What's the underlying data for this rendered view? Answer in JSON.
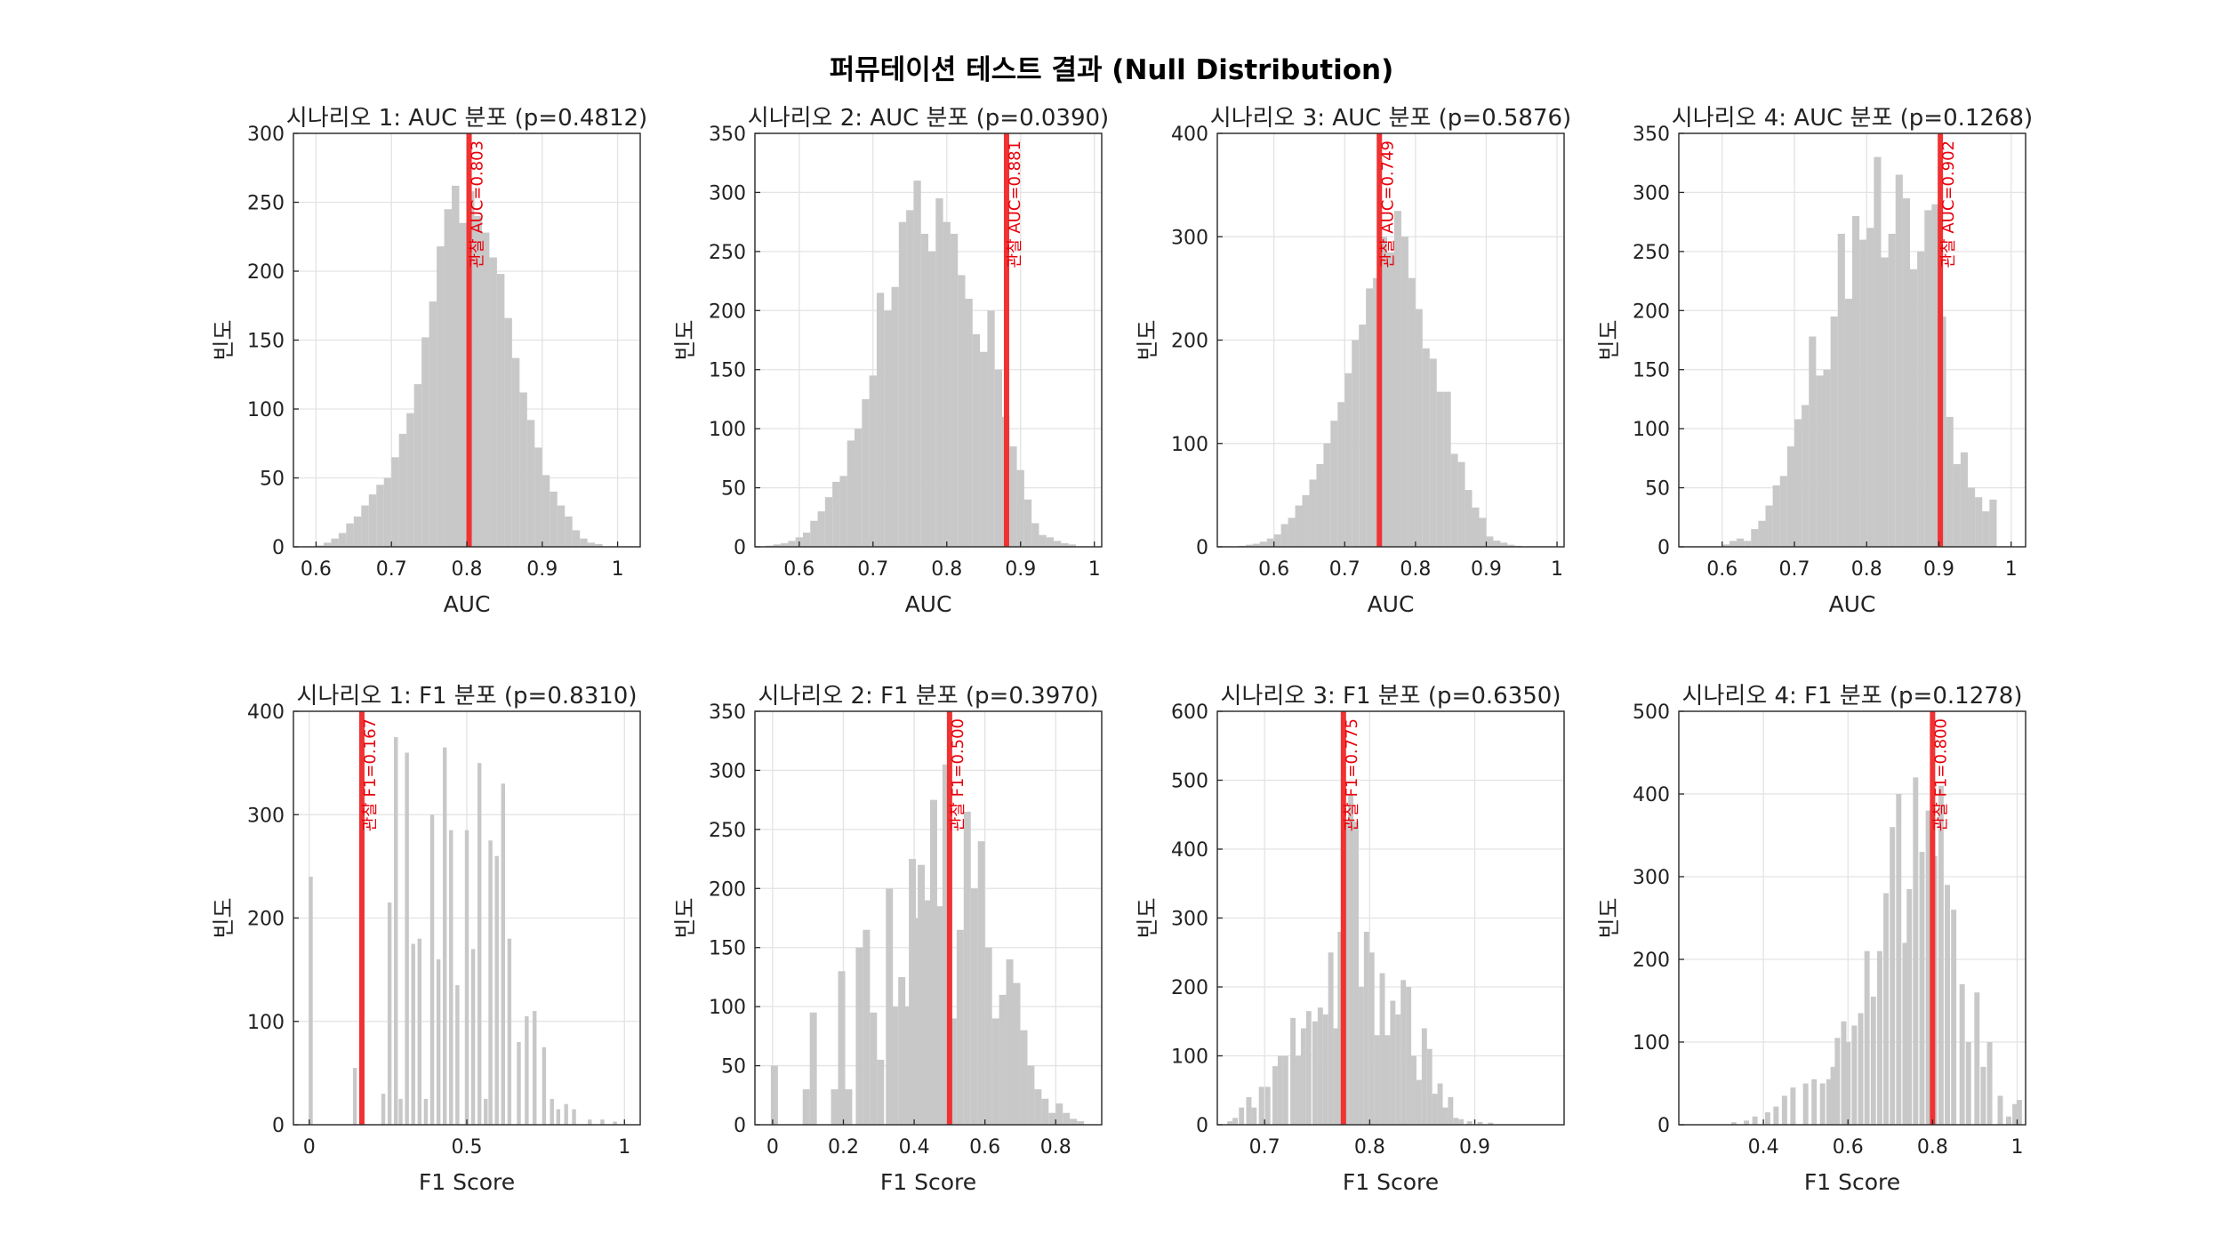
{
  "figure": {
    "title": "퍼뮤테이션 테스트 결과 (Null Distribution)"
  },
  "chart_data": [
    {
      "type": "bar",
      "title": "시나리오 1: AUC 분포 (p=0.4812)",
      "xlabel": "AUC",
      "ylabel": "빈도",
      "xlim": [
        0.57,
        1.03
      ],
      "ylim": [
        0,
        300
      ],
      "xticks": [
        0.6,
        0.7,
        0.8,
        0.9,
        1
      ],
      "xticklabels": [
        "0.6",
        "0.7",
        "0.8",
        "0.9",
        "1"
      ],
      "yticks": [
        0,
        50,
        100,
        150,
        200,
        250,
        300
      ],
      "yticklabels": [
        "0",
        "50",
        "100",
        "150",
        "200",
        "250",
        "300"
      ],
      "observed": {
        "value": 0.803,
        "label": "관찰 AUC=0.803"
      },
      "bin_start": 0.6,
      "bin_width": 0.01,
      "values": [
        1,
        3,
        6,
        10,
        17,
        22,
        30,
        38,
        45,
        50,
        65,
        82,
        97,
        118,
        152,
        178,
        218,
        245,
        262,
        235,
        258,
        240,
        228,
        210,
        198,
        166,
        137,
        112,
        92,
        72,
        52,
        40,
        30,
        22,
        12,
        6,
        3,
        2
      ]
    },
    {
      "type": "bar",
      "title": "시나리오 2: AUC 분포 (p=0.0390)",
      "xlabel": "AUC",
      "ylabel": "빈도",
      "xlim": [
        0.54,
        1.01
      ],
      "ylim": [
        0,
        350
      ],
      "xticks": [
        0.6,
        0.7,
        0.8,
        0.9,
        1
      ],
      "xticklabels": [
        "0.6",
        "0.7",
        "0.8",
        "0.9",
        "1"
      ],
      "yticks": [
        0,
        50,
        100,
        150,
        200,
        250,
        300,
        350
      ],
      "yticklabels": [
        "0",
        "50",
        "100",
        "150",
        "200",
        "250",
        "300",
        "350"
      ],
      "observed": {
        "value": 0.881,
        "label": "관찰 AUC=0.881"
      },
      "bin_start": 0.555,
      "bin_width": 0.01,
      "values": [
        1,
        2,
        3,
        5,
        8,
        12,
        22,
        30,
        42,
        55,
        60,
        90,
        100,
        125,
        145,
        215,
        200,
        220,
        275,
        285,
        310,
        265,
        250,
        295,
        275,
        265,
        230,
        210,
        180,
        165,
        200,
        150,
        110,
        85,
        65,
        40,
        20,
        10,
        8,
        5,
        3,
        2
      ]
    },
    {
      "type": "bar",
      "title": "시나리오 3: AUC 분포 (p=0.5876)",
      "xlabel": "AUC",
      "ylabel": "빈도",
      "xlim": [
        0.52,
        1.01
      ],
      "ylim": [
        0,
        400
      ],
      "xticks": [
        0.6,
        0.7,
        0.8,
        0.9,
        1
      ],
      "xticklabels": [
        "0.6",
        "0.7",
        "0.8",
        "0.9",
        "1"
      ],
      "yticks": [
        0,
        100,
        200,
        300,
        400
      ],
      "yticklabels": [
        "0",
        "100",
        "200",
        "300",
        "400"
      ],
      "observed": {
        "value": 0.749,
        "label": "관찰 AUC=0.749"
      },
      "bin_start": 0.55,
      "bin_width": 0.01,
      "values": [
        1,
        2,
        3,
        5,
        8,
        12,
        22,
        28,
        40,
        50,
        65,
        80,
        100,
        122,
        140,
        168,
        200,
        215,
        250,
        260,
        300,
        285,
        325,
        300,
        260,
        230,
        192,
        182,
        150,
        150,
        90,
        82,
        55,
        38,
        28,
        10,
        6,
        4,
        2,
        1
      ]
    },
    {
      "type": "bar",
      "title": "시나리오 4: AUC 분포 (p=0.1268)",
      "xlabel": "AUC",
      "ylabel": "빈도",
      "xlim": [
        0.54,
        1.02
      ],
      "ylim": [
        0,
        350
      ],
      "xticks": [
        0.6,
        0.7,
        0.8,
        0.9,
        1
      ],
      "xticklabels": [
        "0.6",
        "0.7",
        "0.8",
        "0.9",
        "1"
      ],
      "yticks": [
        0,
        50,
        100,
        150,
        200,
        250,
        300,
        350
      ],
      "yticklabels": [
        "0",
        "50",
        "100",
        "150",
        "200",
        "250",
        "300",
        "350"
      ],
      "observed": {
        "value": 0.902,
        "label": "관찰 AUC=0.902"
      },
      "bin_start": 0.6,
      "bin_width": 0.01,
      "values": [
        2,
        5,
        7,
        5,
        15,
        22,
        35,
        52,
        60,
        85,
        108,
        120,
        178,
        145,
        150,
        195,
        265,
        210,
        280,
        260,
        270,
        330,
        245,
        265,
        315,
        295,
        235,
        250,
        285,
        290,
        195,
        110,
        70,
        80,
        50,
        42,
        30,
        40
      ]
    },
    {
      "type": "bar",
      "title": "시나리오 1: F1 분포 (p=0.8310)",
      "xlabel": "F1 Score",
      "ylabel": "빈도",
      "xlim": [
        -0.05,
        1.05
      ],
      "ylim": [
        0,
        400
      ],
      "xticks": [
        0,
        0.5,
        1
      ],
      "xticklabels": [
        "0",
        "0.5",
        "1"
      ],
      "yticks": [
        0,
        100,
        200,
        300,
        400
      ],
      "yticklabels": [
        "0",
        "100",
        "200",
        "300",
        "400"
      ],
      "observed": {
        "value": 0.167,
        "label": "관찰 F1=0.167"
      },
      "bin_start": 0,
      "bin_width": 0.0125,
      "values": [
        240,
        0,
        0,
        0,
        0,
        0,
        0,
        0,
        0,
        0,
        0,
        0,
        0,
        0,
        0,
        0,
        0,
        0,
        0,
        0,
        0,
        0,
        0,
        0,
        0,
        0,
        55,
        0,
        0,
        0,
        0,
        0,
        0,
        170,
        0,
        0,
        0,
        0,
        0,
        0,
        0,
        0,
        0,
        0,
        0,
        0,
        0,
        0,
        0,
        0,
        0,
        355,
        0,
        0,
        0,
        0,
        0,
        0,
        0,
        0,
        0,
        0,
        0,
        0,
        0,
        0,
        0,
        0,
        0,
        0,
        0,
        0,
        0,
        0,
        0,
        0,
        0,
        0,
        0,
        0,
        0,
        0,
        0,
        0,
        0,
        0,
        0,
        0,
        0,
        0,
        0,
        0,
        0,
        0,
        0,
        0,
        0,
        0,
        0,
        0,
        0,
        0,
        0,
        0,
        0,
        0,
        0,
        0,
        0,
        0,
        0,
        0,
        0,
        0,
        0,
        0,
        0,
        0,
        0,
        0,
        0,
        0,
        0,
        0,
        0,
        0,
        0,
        0,
        0,
        0,
        0,
        0,
        0,
        0,
        0,
        0,
        0,
        0,
        0,
        0,
        0,
        0,
        0,
        0,
        0,
        0,
        0,
        0,
        0,
        0,
        0,
        0,
        0,
        0,
        0,
        0,
        0,
        0,
        0,
        0,
        0,
        0,
        0,
        0,
        0,
        0,
        0,
        0,
        0,
        0,
        0,
        0,
        0,
        0,
        0,
        0,
        0,
        0,
        0,
        0,
        0,
        0,
        0,
        0,
        0,
        0,
        0,
        0,
        0,
        0,
        0,
        0,
        0
      ],
      "bars": [
        [
          0.005,
          240
        ],
        [
          0.145,
          55
        ],
        [
          0.165,
          170
        ],
        [
          0.235,
          30
        ],
        [
          0.255,
          215
        ],
        [
          0.275,
          375
        ],
        [
          0.29,
          25
        ],
        [
          0.31,
          360
        ],
        [
          0.33,
          175
        ],
        [
          0.35,
          180
        ],
        [
          0.37,
          25
        ],
        [
          0.39,
          300
        ],
        [
          0.41,
          160
        ],
        [
          0.43,
          365
        ],
        [
          0.45,
          285
        ],
        [
          0.47,
          135
        ],
        [
          0.5,
          285
        ],
        [
          0.52,
          170
        ],
        [
          0.54,
          350
        ],
        [
          0.56,
          25
        ],
        [
          0.575,
          275
        ],
        [
          0.595,
          260
        ],
        [
          0.615,
          330
        ],
        [
          0.635,
          180
        ],
        [
          0.665,
          80
        ],
        [
          0.69,
          105
        ],
        [
          0.715,
          110
        ],
        [
          0.745,
          75
        ],
        [
          0.77,
          25
        ],
        [
          0.79,
          15
        ],
        [
          0.815,
          20
        ],
        [
          0.84,
          15
        ],
        [
          0.89,
          5
        ],
        [
          0.93,
          5
        ],
        [
          0.97,
          3
        ]
      ]
    },
    {
      "type": "bar",
      "title": "시나리오 2: F1 분포 (p=0.3970)",
      "xlabel": "F1 Score",
      "ylabel": "빈도",
      "xlim": [
        -0.05,
        0.93
      ],
      "ylim": [
        0,
        350
      ],
      "xticks": [
        0,
        0.2,
        0.4,
        0.6,
        0.8
      ],
      "xticklabels": [
        "0",
        "0.2",
        "0.4",
        "0.6",
        "0.8"
      ],
      "yticks": [
        0,
        50,
        100,
        150,
        200,
        250,
        300,
        350
      ],
      "yticklabels": [
        "0",
        "50",
        "100",
        "150",
        "200",
        "250",
        "300",
        "350"
      ],
      "observed": {
        "value": 0.5,
        "label": "관찰 F1=0.500"
      },
      "bin_start": 0,
      "bin_width": 0.02,
      "values": [],
      "bars": [
        [
          0.005,
          50
        ],
        [
          0.095,
          30
        ],
        [
          0.115,
          95
        ],
        [
          0.175,
          30
        ],
        [
          0.195,
          130
        ],
        [
          0.215,
          30
        ],
        [
          0.245,
          150
        ],
        [
          0.265,
          165
        ],
        [
          0.285,
          95
        ],
        [
          0.305,
          55
        ],
        [
          0.33,
          200
        ],
        [
          0.345,
          100
        ],
        [
          0.365,
          125
        ],
        [
          0.38,
          100
        ],
        [
          0.395,
          225
        ],
        [
          0.41,
          175
        ],
        [
          0.42,
          220
        ],
        [
          0.44,
          190
        ],
        [
          0.455,
          275
        ],
        [
          0.47,
          185
        ],
        [
          0.49,
          305
        ],
        [
          0.51,
          90
        ],
        [
          0.53,
          165
        ],
        [
          0.55,
          265
        ],
        [
          0.57,
          200
        ],
        [
          0.59,
          240
        ],
        [
          0.61,
          150
        ],
        [
          0.63,
          90
        ],
        [
          0.65,
          110
        ],
        [
          0.67,
          140
        ],
        [
          0.69,
          120
        ],
        [
          0.71,
          80
        ],
        [
          0.73,
          50
        ],
        [
          0.75,
          30
        ],
        [
          0.77,
          22
        ],
        [
          0.79,
          10
        ],
        [
          0.81,
          18
        ],
        [
          0.83,
          10
        ],
        [
          0.85,
          5
        ],
        [
          0.87,
          3
        ]
      ]
    },
    {
      "type": "bar",
      "title": "시나리오 3: F1 분포 (p=0.6350)",
      "xlabel": "F1 Score",
      "ylabel": "빈도",
      "xlim": [
        0.655,
        0.985
      ],
      "ylim": [
        0,
        600
      ],
      "xticks": [
        0.7,
        0.8,
        0.9
      ],
      "xticklabels": [
        "0.7",
        "0.8",
        "0.9"
      ],
      "yticks": [
        0,
        100,
        200,
        300,
        400,
        500,
        600
      ],
      "yticklabels": [
        "0",
        "100",
        "200",
        "300",
        "400",
        "500",
        "600"
      ],
      "observed": {
        "value": 0.775,
        "label": "관찰 F1=0.775"
      },
      "bin_start": 0.66,
      "bin_width": 0.005,
      "values": [],
      "bars": [
        [
          0.667,
          5
        ],
        [
          0.672,
          10
        ],
        [
          0.678,
          25
        ],
        [
          0.685,
          40
        ],
        [
          0.69,
          25
        ],
        [
          0.697,
          55
        ],
        [
          0.703,
          55
        ],
        [
          0.71,
          85
        ],
        [
          0.715,
          100
        ],
        [
          0.72,
          100
        ],
        [
          0.727,
          155
        ],
        [
          0.732,
          100
        ],
        [
          0.737,
          140
        ],
        [
          0.742,
          165
        ],
        [
          0.748,
          150
        ],
        [
          0.753,
          170
        ],
        [
          0.758,
          160
        ],
        [
          0.763,
          250
        ],
        [
          0.768,
          140
        ],
        [
          0.772,
          280
        ],
        [
          0.777,
          440
        ],
        [
          0.782,
          480
        ],
        [
          0.787,
          440
        ],
        [
          0.792,
          200
        ],
        [
          0.797,
          280
        ],
        [
          0.802,
          250
        ],
        [
          0.807,
          130
        ],
        [
          0.812,
          220
        ],
        [
          0.817,
          130
        ],
        [
          0.822,
          180
        ],
        [
          0.827,
          160
        ],
        [
          0.832,
          210
        ],
        [
          0.837,
          200
        ],
        [
          0.842,
          100
        ],
        [
          0.847,
          65
        ],
        [
          0.852,
          140
        ],
        [
          0.857,
          110
        ],
        [
          0.862,
          45
        ],
        [
          0.867,
          60
        ],
        [
          0.872,
          25
        ],
        [
          0.877,
          40
        ],
        [
          0.882,
          10
        ],
        [
          0.887,
          8
        ],
        [
          0.895,
          5
        ],
        [
          0.905,
          4
        ],
        [
          0.915,
          3
        ]
      ]
    },
    {
      "type": "bar",
      "title": "시나리오 4: F1 분포 (p=0.1278)",
      "xlabel": "F1 Score",
      "ylabel": "빈도",
      "xlim": [
        0.2,
        1.02
      ],
      "ylim": [
        0,
        500
      ],
      "xticks": [
        0.4,
        0.6,
        0.8,
        1
      ],
      "xticklabels": [
        "0.4",
        "0.6",
        "0.8",
        "1"
      ],
      "yticks": [
        0,
        100,
        200,
        300,
        400,
        500
      ],
      "yticklabels": [
        "0",
        "100",
        "200",
        "300",
        "400",
        "500"
      ],
      "observed": {
        "value": 0.8,
        "label": "관찰 F1=0.800"
      },
      "bin_start": 0.2,
      "bin_width": 0.0125,
      "values": [],
      "bars": [
        [
          0.33,
          3
        ],
        [
          0.36,
          5
        ],
        [
          0.38,
          10
        ],
        [
          0.41,
          15
        ],
        [
          0.43,
          22
        ],
        [
          0.45,
          35
        ],
        [
          0.47,
          45
        ],
        [
          0.5,
          50
        ],
        [
          0.52,
          55
        ],
        [
          0.54,
          50
        ],
        [
          0.555,
          55
        ],
        [
          0.565,
          70
        ],
        [
          0.575,
          105
        ],
        [
          0.59,
          125
        ],
        [
          0.6,
          100
        ],
        [
          0.615,
          120
        ],
        [
          0.63,
          135
        ],
        [
          0.645,
          210
        ],
        [
          0.66,
          155
        ],
        [
          0.675,
          210
        ],
        [
          0.69,
          280
        ],
        [
          0.705,
          360
        ],
        [
          0.72,
          400
        ],
        [
          0.735,
          220
        ],
        [
          0.745,
          285
        ],
        [
          0.76,
          420
        ],
        [
          0.775,
          330
        ],
        [
          0.79,
          380
        ],
        [
          0.805,
          325
        ],
        [
          0.82,
          410
        ],
        [
          0.835,
          290
        ],
        [
          0.85,
          260
        ],
        [
          0.87,
          170
        ],
        [
          0.885,
          100
        ],
        [
          0.905,
          160
        ],
        [
          0.92,
          70
        ],
        [
          0.935,
          100
        ],
        [
          0.96,
          35
        ],
        [
          0.98,
          10
        ],
        [
          0.995,
          25
        ],
        [
          1.005,
          30
        ]
      ]
    }
  ]
}
